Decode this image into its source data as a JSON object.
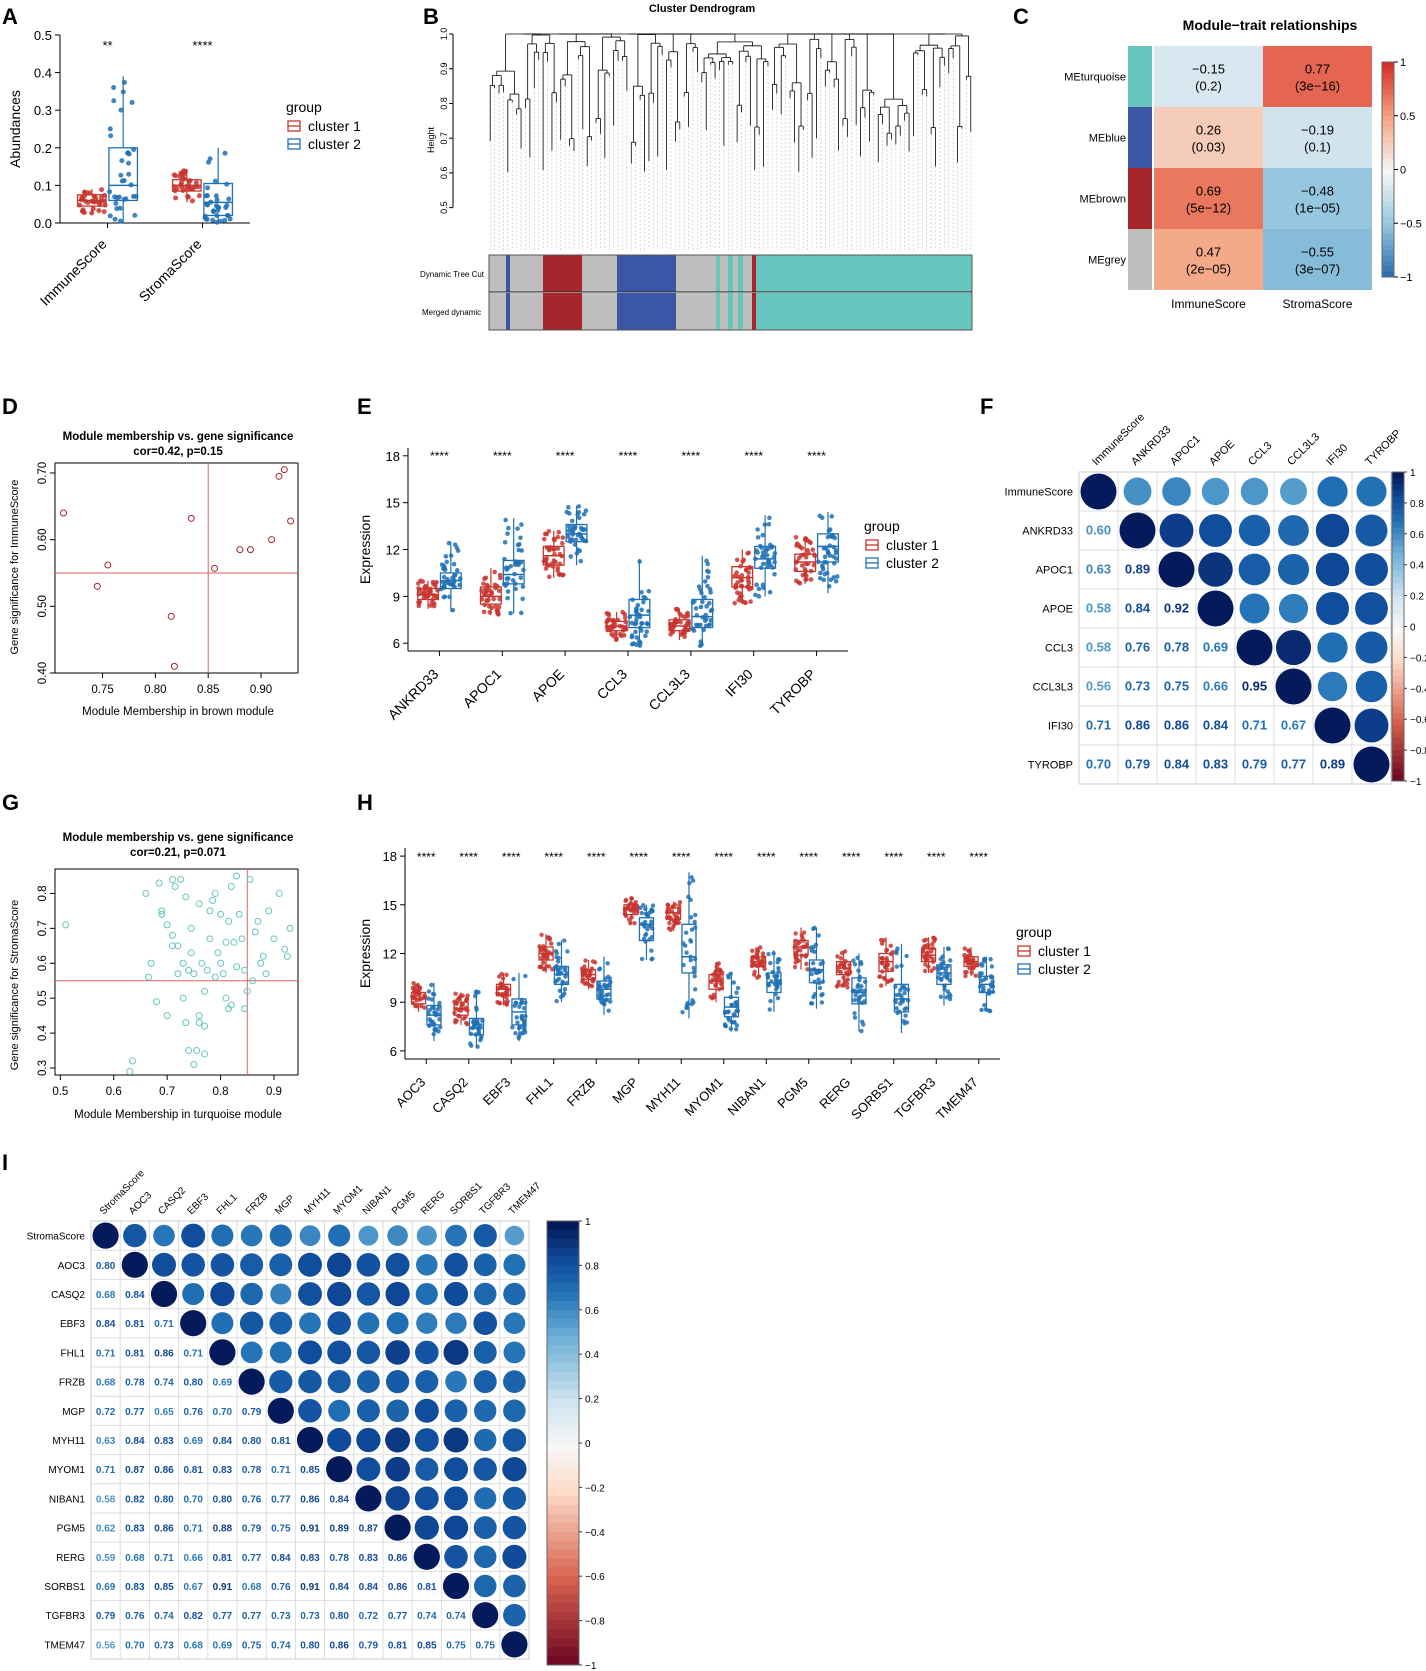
{
  "colors": {
    "c1": "#c8352f",
    "c2": "#1f70b5",
    "teal": "#66c6be",
    "blue": "#3c56a6",
    "brown": "#a6262b",
    "grey": "#bebebe",
    "line": "#e06060"
  },
  "panels": {
    "A": "A",
    "B": "B",
    "C": "C",
    "D": "D",
    "E": "E",
    "F": "F",
    "G": "G",
    "H": "H",
    "I": "I"
  },
  "legend": {
    "title": "group",
    "c1": "cluster 1",
    "c2": "cluster 2"
  },
  "chart_data": {
    "A": {
      "type": "box",
      "ylabel": "Abundances",
      "ylim": [
        0,
        0.5
      ],
      "yticks": [
        "0.0",
        "0.1",
        "0.2",
        "0.3",
        "0.4",
        "0.5"
      ],
      "categories": [
        "ImmuneScore",
        "StromaScore"
      ],
      "signif": [
        "**",
        "****"
      ],
      "series": [
        {
          "name": "cluster 1",
          "q1": [
            0.045,
            0.085
          ],
          "med": [
            0.06,
            0.1
          ],
          "q3": [
            0.075,
            0.115
          ],
          "wlo": [
            0.025,
            0.055
          ],
          "whi": [
            0.09,
            0.14
          ]
        },
        {
          "name": "cluster 2",
          "q1": [
            0.06,
            0.02
          ],
          "med": [
            0.1,
            0.055
          ],
          "q3": [
            0.2,
            0.105
          ],
          "wlo": [
            0.0,
            0.0
          ],
          "whi": [
            0.39,
            0.2
          ]
        }
      ]
    },
    "B": {
      "type": "dendrogram",
      "title": "Cluster Dendrogram",
      "ylabel": "Height",
      "yticks": [
        "0.5",
        "0.6",
        "0.7",
        "0.8",
        "0.9",
        "1.0"
      ],
      "ylim": [
        0.45,
        1.0
      ],
      "rows": [
        "Dynamic Tree Cut",
        "Merged dynamic"
      ]
    },
    "C": {
      "type": "heatmap",
      "title": "Module−trait relationships",
      "rows": [
        "MEturquoise",
        "MEblue",
        "MEbrown",
        "MEgrey"
      ],
      "cols": [
        "ImmuneScore",
        "StromaScore"
      ],
      "values": [
        [
          -0.15,
          0.77
        ],
        [
          0.26,
          -0.19
        ],
        [
          0.69,
          -0.48
        ],
        [
          0.47,
          -0.55
        ]
      ],
      "labels": [
        [
          "−0.15",
          "(0.2)",
          "0.77",
          "(3e−16)"
        ],
        [
          "0.26",
          "(0.03)",
          "−0.19",
          "(0.1)"
        ],
        [
          "0.69",
          "(5e−12)",
          "−0.48",
          "(1e−05)"
        ],
        [
          "0.47",
          "(2e−05)",
          "−0.55",
          "(3e−07)"
        ]
      ],
      "scale_ticks": [
        "1",
        "0.5",
        "0",
        "−0.5",
        "−1"
      ]
    },
    "D": {
      "type": "scatter",
      "title": "Module membership vs. gene significance",
      "subtitle": "cor=0.42, p=0.15",
      "xlabel": "Module Membership in brown module",
      "ylabel": "Gene significance for ImmuneScore",
      "xlim": [
        0.705,
        0.935
      ],
      "ylim": [
        0.4,
        0.715
      ],
      "xticks": [
        0.75,
        0.8,
        0.85,
        0.9
      ],
      "yticks": [
        0.4,
        0.5,
        0.6,
        0.7
      ],
      "xticklabels": [
        "0.75",
        "0.80",
        "0.85",
        "0.90"
      ],
      "yticklabels": [
        "0.40",
        "0.50",
        "0.60",
        "0.70"
      ],
      "vline": 0.85,
      "hline": 0.55,
      "x": [
        0.713,
        0.745,
        0.755,
        0.815,
        0.818,
        0.834,
        0.856,
        0.88,
        0.89,
        0.91,
        0.917,
        0.922,
        0.928
      ],
      "y": [
        0.64,
        0.53,
        0.562,
        0.485,
        0.41,
        0.632,
        0.557,
        0.585,
        0.585,
        0.6,
        0.695,
        0.705,
        0.628
      ]
    },
    "E": {
      "type": "box",
      "ylabel": "Expression",
      "ylim": [
        5.5,
        18.5
      ],
      "yticks": [
        "6",
        "9",
        "12",
        "15",
        "18"
      ],
      "categories": [
        "ANKRD33",
        "APOC1",
        "APOE",
        "CCL3",
        "CCL3L3",
        "IFI30",
        "TYROBP"
      ],
      "signif": [
        "****",
        "****",
        "****",
        "****",
        "****",
        "****",
        "****"
      ],
      "series": [
        {
          "name": "cluster 1",
          "q1": [
            8.8,
            8.5,
            11.0,
            6.8,
            6.8,
            9.6,
            10.6
          ],
          "med": [
            9.1,
            9.0,
            11.6,
            7.1,
            7.1,
            10.2,
            11.2
          ],
          "q3": [
            9.5,
            9.6,
            12.2,
            7.4,
            7.5,
            10.9,
            11.7
          ],
          "wlo": [
            8.2,
            7.8,
            10.2,
            6.2,
            6.2,
            8.5,
            9.8
          ],
          "whi": [
            10.0,
            10.8,
            13.2,
            8.0,
            8.2,
            12.0,
            12.8
          ]
        },
        {
          "name": "cluster 2",
          "q1": [
            9.5,
            9.8,
            12.5,
            7.0,
            7.0,
            10.8,
            11.2
          ],
          "med": [
            10.0,
            10.4,
            13.0,
            7.8,
            7.7,
            11.4,
            12.2
          ],
          "q3": [
            10.5,
            11.3,
            13.6,
            8.8,
            8.8,
            12.2,
            13.0
          ],
          "wlo": [
            8.0,
            7.9,
            11.0,
            5.8,
            5.8,
            9.0,
            9.2
          ],
          "whi": [
            12.5,
            14.0,
            14.8,
            11.4,
            11.6,
            14.2,
            14.4
          ]
        }
      ]
    },
    "F": {
      "type": "corrplot",
      "labels": [
        "ImmuneScore",
        "ANKRD33",
        "APOC1",
        "APOE",
        "CCL3",
        "CCL3L3",
        "IFI30",
        "TYROBP"
      ],
      "lower": [
        [],
        [
          "0.60"
        ],
        [
          "0.63",
          "0.89"
        ],
        [
          "0.58",
          "0.84",
          "0.92"
        ],
        [
          "0.58",
          "0.76",
          "0.78",
          "0.69"
        ],
        [
          "0.56",
          "0.73",
          "0.75",
          "0.66",
          "0.95"
        ],
        [
          "0.71",
          "0.86",
          "0.86",
          "0.84",
          "0.71",
          "0.67"
        ],
        [
          "0.70",
          "0.79",
          "0.84",
          "0.83",
          "0.79",
          "0.77",
          "0.89"
        ]
      ],
      "scale_ticks": [
        "1",
        "0.8",
        "0.6",
        "0.4",
        "0.2",
        "0",
        "−0.2",
        "−0.4",
        "−0.6",
        "−0.8",
        "−1"
      ]
    },
    "G": {
      "type": "scatter",
      "title": "Module membership vs. gene significance",
      "subtitle": "cor=0.21, p=0.071",
      "xlabel": "Module Membership in turquoise module",
      "ylabel": "Gene significance for StromaScore",
      "xlim": [
        0.49,
        0.945
      ],
      "ylim": [
        0.28,
        0.87
      ],
      "xticks": [
        0.5,
        0.6,
        0.7,
        0.8,
        0.9
      ],
      "yticks": [
        0.3,
        0.4,
        0.5,
        0.6,
        0.7,
        0.8
      ],
      "xticklabels": [
        "0.5",
        "0.6",
        "0.7",
        "0.8",
        "0.9"
      ],
      "yticklabels": [
        "0.3",
        "0.4",
        "0.5",
        "0.6",
        "0.7",
        "0.8"
      ],
      "vline": 0.85,
      "hline": 0.55,
      "x": [
        0.51,
        0.63,
        0.635,
        0.66,
        0.665,
        0.67,
        0.68,
        0.685,
        0.69,
        0.7,
        0.7,
        0.71,
        0.71,
        0.715,
        0.72,
        0.72,
        0.725,
        0.73,
        0.735,
        0.735,
        0.74,
        0.74,
        0.745,
        0.75,
        0.75,
        0.755,
        0.76,
        0.76,
        0.765,
        0.77,
        0.77,
        0.775,
        0.78,
        0.78,
        0.785,
        0.79,
        0.79,
        0.795,
        0.8,
        0.8,
        0.805,
        0.81,
        0.81,
        0.815,
        0.82,
        0.82,
        0.825,
        0.83,
        0.83,
        0.835,
        0.84,
        0.845,
        0.85,
        0.855,
        0.86,
        0.865,
        0.87,
        0.875,
        0.88,
        0.885,
        0.89,
        0.9,
        0.91,
        0.92,
        0.925,
        0.93,
        0.73,
        0.745,
        0.76,
        0.77,
        0.815,
        0.845,
        0.69,
        0.71
      ],
      "y": [
        0.71,
        0.29,
        0.32,
        0.8,
        0.56,
        0.6,
        0.49,
        0.83,
        0.75,
        0.45,
        0.71,
        0.84,
        0.68,
        0.82,
        0.65,
        0.57,
        0.84,
        0.6,
        0.43,
        0.79,
        0.35,
        0.58,
        0.7,
        0.31,
        0.57,
        0.35,
        0.77,
        0.45,
        0.6,
        0.34,
        0.52,
        0.58,
        0.67,
        0.75,
        0.78,
        0.56,
        0.8,
        0.63,
        0.6,
        0.74,
        0.57,
        0.5,
        0.66,
        0.47,
        0.82,
        0.48,
        0.66,
        0.85,
        0.59,
        0.74,
        0.67,
        0.47,
        0.52,
        0.84,
        0.55,
        0.69,
        0.72,
        0.6,
        0.62,
        0.57,
        0.75,
        0.67,
        0.8,
        0.64,
        0.62,
        0.7,
        0.5,
        0.63,
        0.43,
        0.42,
        0.72,
        0.58,
        0.74,
        0.65
      ]
    },
    "H": {
      "type": "box",
      "ylabel": "Expression",
      "ylim": [
        5.5,
        18.5
      ],
      "yticks": [
        "6",
        "9",
        "12",
        "15",
        "18"
      ],
      "categories": [
        "AOC3",
        "CASQ2",
        "EBF3",
        "FHL1",
        "FRZB",
        "MGP",
        "MYH11",
        "MYOM1",
        "NIBAN1",
        "PGM5",
        "RERG",
        "SORBS1",
        "TGFBR3",
        "TMEM47"
      ],
      "signif": [
        "****",
        "****",
        "****",
        "****",
        "****",
        "****",
        "****",
        "****",
        "****",
        "****",
        "****",
        "****",
        "****",
        "****"
      ],
      "series": [
        {
          "name": "cluster 1",
          "q1": [
            8.9,
            8.2,
            9.4,
            11.6,
            10.4,
            14.4,
            14.1,
            9.8,
            11.2,
            11.9,
            10.7,
            10.9,
            11.5,
            11.2
          ],
          "med": [
            9.2,
            8.6,
            9.8,
            12.0,
            10.7,
            14.7,
            14.5,
            10.3,
            11.5,
            12.4,
            11.1,
            11.5,
            11.9,
            11.5
          ],
          "q3": [
            9.6,
            9.0,
            10.1,
            12.4,
            11.0,
            15.0,
            14.8,
            10.7,
            11.8,
            12.8,
            11.5,
            12.0,
            12.3,
            11.8
          ],
          "wlo": [
            8.4,
            7.6,
            8.8,
            10.8,
            9.8,
            13.8,
            13.4,
            9.0,
            10.5,
            11.0,
            9.9,
            10.0,
            10.8,
            10.6
          ],
          "whi": [
            10.2,
            9.6,
            10.8,
            13.2,
            11.6,
            15.4,
            15.2,
            11.4,
            12.4,
            13.6,
            12.2,
            13.0,
            13.0,
            12.4
          ]
        },
        {
          "name": "cluster 2",
          "q1": [
            7.6,
            7.0,
            7.6,
            10.1,
            9.2,
            12.8,
            10.8,
            8.1,
            9.6,
            10.2,
            8.9,
            8.4,
            10.1,
            9.6
          ],
          "med": [
            8.2,
            7.4,
            8.4,
            10.7,
            9.8,
            13.8,
            11.8,
            8.7,
            10.2,
            11.0,
            9.6,
            9.2,
            10.8,
            10.1
          ],
          "q3": [
            8.8,
            8.0,
            9.2,
            11.2,
            10.3,
            14.2,
            13.8,
            9.3,
            10.8,
            11.6,
            10.5,
            10.1,
            11.3,
            10.6
          ],
          "wlo": [
            6.6,
            6.2,
            6.6,
            9.0,
            8.2,
            11.6,
            8.0,
            7.2,
            8.4,
            8.6,
            7.2,
            7.1,
            8.8,
            8.4
          ],
          "whi": [
            10.2,
            9.8,
            10.8,
            12.8,
            11.8,
            15.0,
            17.0,
            10.8,
            12.2,
            13.6,
            12.0,
            12.6,
            12.4,
            11.8
          ]
        }
      ]
    },
    "I": {
      "type": "corrplot",
      "labels": [
        "StromaScore",
        "AOC3",
        "CASQ2",
        "EBF3",
        "FHL1",
        "FRZB",
        "MGP",
        "MYH11",
        "MYOM1",
        "NIBAN1",
        "PGM5",
        "RERG",
        "SORBS1",
        "TGFBR3",
        "TMEM47"
      ],
      "lower": [
        [],
        [
          "0.80"
        ],
        [
          "0.68",
          "0.84"
        ],
        [
          "0.84",
          "0.81",
          "0.71"
        ],
        [
          "0.71",
          "0.81",
          "0.86",
          "0.71"
        ],
        [
          "0.68",
          "0.78",
          "0.74",
          "0.80",
          "0.69"
        ],
        [
          "0.72",
          "0.77",
          "0.65",
          "0.76",
          "0.70",
          "0.79"
        ],
        [
          "0.63",
          "0.84",
          "0.83",
          "0.69",
          "0.84",
          "0.80",
          "0.81"
        ],
        [
          "0.71",
          "0.87",
          "0.86",
          "0.81",
          "0.83",
          "0.78",
          "0.71",
          "0.85"
        ],
        [
          "0.58",
          "0.82",
          "0.80",
          "0.70",
          "0.80",
          "0.76",
          "0.77",
          "0.86",
          "0.84"
        ],
        [
          "0.62",
          "0.83",
          "0.86",
          "0.71",
          "0.88",
          "0.79",
          "0.75",
          "0.91",
          "0.89",
          "0.87"
        ],
        [
          "0.59",
          "0.68",
          "0.71",
          "0.66",
          "0.81",
          "0.77",
          "0.84",
          "0.83",
          "0.78",
          "0.83",
          "0.86"
        ],
        [
          "0.69",
          "0.83",
          "0.85",
          "0.67",
          "0.91",
          "0.68",
          "0.76",
          "0.91",
          "0.84",
          "0.84",
          "0.86",
          "0.81"
        ],
        [
          "0.79",
          "0.76",
          "0.74",
          "0.82",
          "0.77",
          "0.77",
          "0.73",
          "0.73",
          "0.80",
          "0.72",
          "0.77",
          "0.74",
          "0.74"
        ],
        [
          "0.56",
          "0.70",
          "0.73",
          "0.68",
          "0.69",
          "0.75",
          "0.74",
          "0.80",
          "0.86",
          "0.79",
          "0.81",
          "0.85",
          "0.75",
          "0.75"
        ]
      ],
      "scale_ticks": [
        "1",
        "0.8",
        "0.6",
        "0.4",
        "0.2",
        "0",
        "−0.2",
        "−0.4",
        "−0.6",
        "−0.8",
        "−1"
      ]
    }
  }
}
